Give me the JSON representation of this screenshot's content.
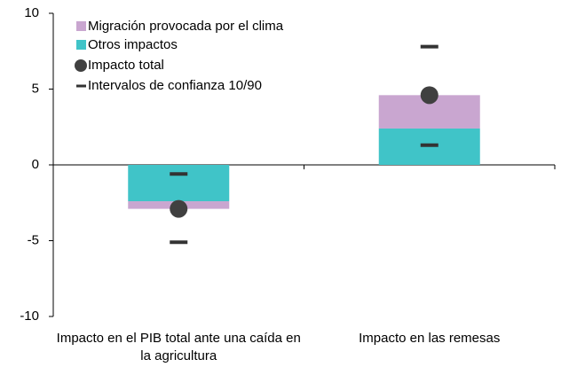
{
  "chart_data": {
    "type": "bar",
    "categories": [
      "Impacto en el PIB total ante una caída en la agricultura",
      "Impacto en las remesas"
    ],
    "series": [
      {
        "name": "Migración provocada por el clima",
        "kind": "bar",
        "color": "#c9a6d0",
        "values": [
          -0.5,
          2.2
        ]
      },
      {
        "name": "Otros impactos",
        "kind": "bar",
        "color": "#40c4c8",
        "values": [
          -2.4,
          2.4
        ]
      },
      {
        "name": "Impacto total",
        "kind": "point",
        "color": "#404040",
        "values": [
          -2.9,
          4.6
        ]
      },
      {
        "name": "Intervalos de confianza 10/90",
        "kind": "interval",
        "color": "#333333",
        "values": [
          [
            -5.1,
            -0.6
          ],
          [
            1.3,
            7.8
          ]
        ]
      }
    ],
    "stack_order": [
      1,
      0
    ],
    "ylim": [
      -10,
      10
    ],
    "yticks": [
      -10,
      -5,
      0,
      5,
      10
    ],
    "legend": "upper-left"
  }
}
